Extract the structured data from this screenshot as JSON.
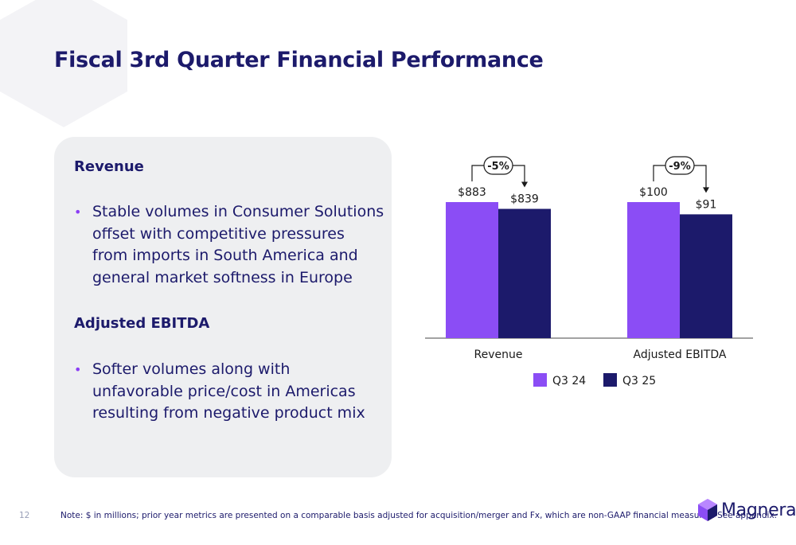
{
  "page": {
    "title": "Fiscal 3rd Quarter Financial Performance",
    "page_number": "12",
    "footnote": "Note: $ in millions; prior year metrics are presented on a comparable basis adjusted for acquisition/merger and Fx, which are non-GAAP financial measures.  See appendix.",
    "logo_text": "Magnera"
  },
  "panel": {
    "revenue_heading": "Revenue",
    "revenue_bullet": "Stable volumes in Consumer Solutions offset with competitive pressures from imports in South America and general market softness in Europe",
    "ebitda_heading": "Adjusted EBITDA",
    "ebitda_bullet": "Softer volumes along with unfavorable price/cost in Americas resulting from negative product mix",
    "bullet_char": "•"
  },
  "colors": {
    "q3_24": "#8b4df5",
    "q3_25": "#1c1a6b",
    "text": "#1c1a6b",
    "panel_bg": "#eeeff1"
  },
  "chart_data": {
    "type": "bar",
    "groups": [
      {
        "name": "Revenue",
        "values": [
          883,
          839
        ],
        "labels": [
          "$883",
          "$839"
        ],
        "change": "-5%"
      },
      {
        "name": "Adjusted EBITDA",
        "values": [
          100,
          91
        ],
        "labels": [
          "$100",
          "$91"
        ],
        "change": "-9%"
      }
    ],
    "legend": [
      "Q3 24",
      "Q3 25"
    ],
    "legend_placement": "bottom"
  }
}
